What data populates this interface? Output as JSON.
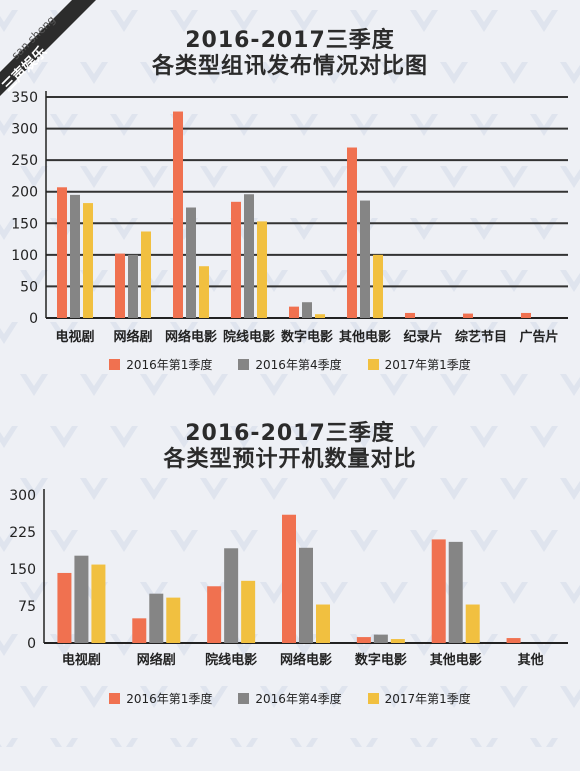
{
  "watermark": {
    "line1": "san sheng",
    "line2": "三声娱乐"
  },
  "colors": {
    "s1": "#f07150",
    "s2": "#858585",
    "s3": "#f1c040",
    "axis": "#222222",
    "grid": "#333333",
    "text": "#222222"
  },
  "chart_data": [
    {
      "type": "bar",
      "title_line1": "2016-2017三季度",
      "title_line2": "各类型组讯发布情况对比图",
      "categories": [
        "电视剧",
        "网络剧",
        "网络电影",
        "院线电影",
        "数字电影",
        "其他电影",
        "纪录片",
        "综艺节目",
        "广告片"
      ],
      "ylim": [
        0,
        350
      ],
      "yticks": [
        0,
        50,
        100,
        150,
        200,
        250,
        300,
        350
      ],
      "grid": true,
      "legend_position": "bottom",
      "series": [
        {
          "name": "2016年第1季度",
          "values": [
            207,
            102,
            327,
            184,
            18,
            270,
            8,
            7,
            8
          ]
        },
        {
          "name": "2016年第4季度",
          "values": [
            195,
            100,
            175,
            196,
            25,
            186,
            0,
            0,
            0
          ]
        },
        {
          "name": "2017年第1季度",
          "values": [
            182,
            137,
            82,
            153,
            6,
            100,
            0,
            0,
            0
          ]
        }
      ]
    },
    {
      "type": "bar",
      "title_line1": "2016-2017三季度",
      "title_line2": "各类型预计开机数量对比",
      "categories": [
        "电视剧",
        "网络剧",
        "院线电影",
        "网络电影",
        "数字电影",
        "其他电影",
        "其他"
      ],
      "ylim": [
        0,
        300
      ],
      "yticks": [
        0,
        75,
        150,
        225,
        300
      ],
      "grid": false,
      "legend_position": "bottom",
      "series": [
        {
          "name": "2016年第1季度",
          "values": [
            142,
            50,
            115,
            260,
            12,
            210,
            10
          ]
        },
        {
          "name": "2016年第4季度",
          "values": [
            177,
            100,
            192,
            193,
            17,
            205,
            0
          ]
        },
        {
          "name": "2017年第1季度",
          "values": [
            159,
            92,
            126,
            78,
            8,
            78,
            0
          ]
        }
      ]
    }
  ]
}
